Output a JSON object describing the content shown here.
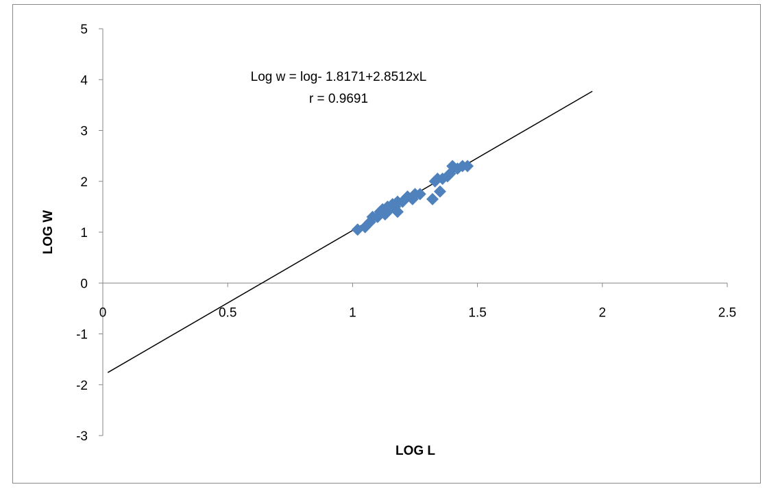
{
  "chart_data": {
    "type": "scatter",
    "title": "",
    "xlabel": "LOG L",
    "ylabel": "LOG W",
    "xlim": [
      0,
      2.5
    ],
    "ylim": [
      -3,
      5
    ],
    "x_ticks": [
      "0",
      "0.5",
      "1",
      "1.5",
      "2",
      "2.5"
    ],
    "y_ticks": [
      "5",
      "4",
      "3",
      "2",
      "1",
      "0",
      "-1",
      "-2",
      "-3"
    ],
    "grid": false,
    "legend": false,
    "marker_color": "#4F81BD",
    "marker": "diamond",
    "annotations": [
      "Log w = log- 1.8171+2.8512xL",
      "r = 0.9691"
    ],
    "points": [
      {
        "x": 1.02,
        "y": 1.05
      },
      {
        "x": 1.05,
        "y": 1.1
      },
      {
        "x": 1.07,
        "y": 1.2
      },
      {
        "x": 1.08,
        "y": 1.3
      },
      {
        "x": 1.1,
        "y": 1.3
      },
      {
        "x": 1.11,
        "y": 1.4
      },
      {
        "x": 1.12,
        "y": 1.45
      },
      {
        "x": 1.13,
        "y": 1.35
      },
      {
        "x": 1.14,
        "y": 1.5
      },
      {
        "x": 1.15,
        "y": 1.45
      },
      {
        "x": 1.16,
        "y": 1.55
      },
      {
        "x": 1.17,
        "y": 1.5
      },
      {
        "x": 1.18,
        "y": 1.4
      },
      {
        "x": 1.18,
        "y": 1.6
      },
      {
        "x": 1.2,
        "y": 1.6
      },
      {
        "x": 1.22,
        "y": 1.7
      },
      {
        "x": 1.24,
        "y": 1.65
      },
      {
        "x": 1.25,
        "y": 1.75
      },
      {
        "x": 1.27,
        "y": 1.75
      },
      {
        "x": 1.32,
        "y": 1.65
      },
      {
        "x": 1.33,
        "y": 2.0
      },
      {
        "x": 1.34,
        "y": 2.05
      },
      {
        "x": 1.35,
        "y": 1.8
      },
      {
        "x": 1.36,
        "y": 2.05
      },
      {
        "x": 1.38,
        "y": 2.1
      },
      {
        "x": 1.39,
        "y": 2.15
      },
      {
        "x": 1.4,
        "y": 2.3
      },
      {
        "x": 1.42,
        "y": 2.25
      },
      {
        "x": 1.44,
        "y": 2.3
      },
      {
        "x": 1.46,
        "y": 2.3
      }
    ],
    "regression": {
      "intercept": -1.8171,
      "slope": 2.8512,
      "x_range": [
        0.02,
        1.96
      ]
    }
  }
}
